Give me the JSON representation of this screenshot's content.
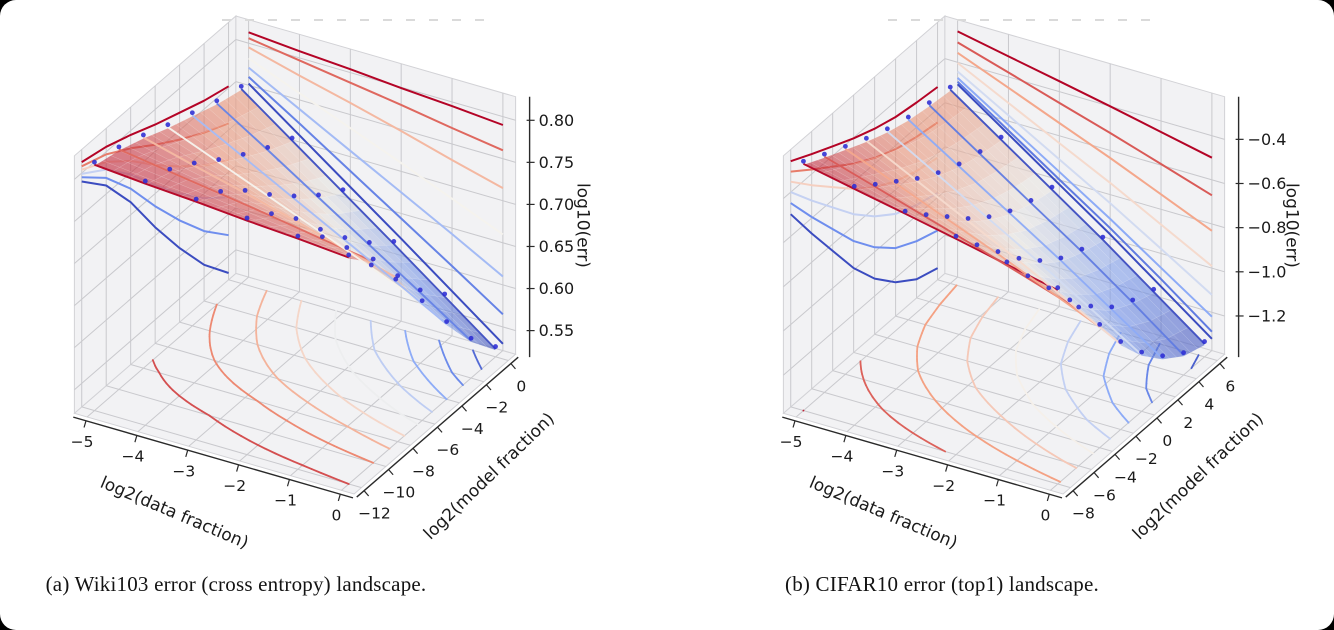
{
  "page": {
    "background": "#000000",
    "card_background": "#ffffff"
  },
  "plot_style": {
    "pane_color": "#f2f2f4",
    "grid_color": "#c9c9cd",
    "axis_color": "#2a2a2a",
    "marker_color": "#2c2cd4",
    "surface_opacity": 0.6,
    "colormap": "coolwarm",
    "colormap_anchors": [
      "#3b4cc0",
      "#7c9ff9",
      "#f5f3ee",
      "#f49a7b",
      "#b40426"
    ]
  },
  "chart_data": [
    {
      "type": "surface3d",
      "title": "(a) Wiki103 error (cross entropy) landscape.",
      "xlabel": "log2(data fraction)",
      "ylabel": "log2(model fraction)",
      "zlabel": "log10(err)",
      "x": [
        -5,
        -4,
        -3,
        -2,
        -1,
        0
      ],
      "y": [
        -12,
        -10,
        -8,
        -6,
        -4,
        -2,
        0
      ],
      "z": [
        [
          0.813,
          0.808,
          0.804,
          0.799,
          0.795,
          0.79
        ],
        [
          0.806,
          0.797,
          0.788,
          0.779,
          0.769,
          0.76
        ],
        [
          0.795,
          0.779,
          0.764,
          0.748,
          0.731,
          0.715
        ],
        [
          0.782,
          0.758,
          0.734,
          0.71,
          0.685,
          0.66
        ],
        [
          0.771,
          0.739,
          0.707,
          0.675,
          0.643,
          0.61
        ],
        [
          0.76,
          0.722,
          0.683,
          0.644,
          0.605,
          0.565
        ],
        [
          0.752,
          0.708,
          0.664,
          0.62,
          0.575,
          0.53
        ]
      ],
      "zlim": [
        0.522,
        0.828
      ],
      "xticks": [
        {
          "v": -5,
          "label": "−5"
        },
        {
          "v": -4,
          "label": "−4"
        },
        {
          "v": -3,
          "label": "−3"
        },
        {
          "v": -2,
          "label": "−2"
        },
        {
          "v": -1,
          "label": "−1"
        },
        {
          "v": 0,
          "label": "0"
        }
      ],
      "yticks": [
        {
          "v": -12,
          "label": "−12"
        },
        {
          "v": -10,
          "label": "−10"
        },
        {
          "v": -8,
          "label": "−8"
        },
        {
          "v": -6,
          "label": "−6"
        },
        {
          "v": -4,
          "label": "−4"
        },
        {
          "v": -2,
          "label": "−2"
        },
        {
          "v": 0,
          "label": "0"
        }
      ],
      "zticks": [
        {
          "v": 0.55,
          "label": "0.55"
        },
        {
          "v": 0.6,
          "label": "0.60"
        },
        {
          "v": 0.65,
          "label": "0.65"
        },
        {
          "v": 0.7,
          "label": "0.70"
        },
        {
          "v": 0.75,
          "label": "0.75"
        },
        {
          "v": 0.8,
          "label": "0.80"
        }
      ],
      "contour_levels": [
        0.55,
        0.58,
        0.61,
        0.64,
        0.67,
        0.7,
        0.73,
        0.76,
        0.79
      ],
      "grid_on": true,
      "legend": null
    },
    {
      "type": "surface3d",
      "title": "(b) CIFAR10 error (top1) landscape.",
      "xlabel": "log2(data fraction)",
      "ylabel": "log2(model fraction)",
      "zlabel": "log10(err)",
      "x": [
        -5,
        -4,
        -3,
        -2,
        -1,
        0
      ],
      "y": [
        -8,
        -6,
        -4,
        -2,
        0,
        2,
        4,
        6
      ],
      "z": [
        [
          -0.26,
          -0.307,
          -0.353,
          -0.4,
          -0.45,
          -0.5
        ],
        [
          -0.31,
          -0.38,
          -0.451,
          -0.521,
          -0.595,
          -0.67
        ],
        [
          -0.357,
          -0.449,
          -0.542,
          -0.634,
          -0.732,
          -0.831
        ],
        [
          -0.403,
          -0.518,
          -0.633,
          -0.747,
          -0.869,
          -0.991
        ],
        [
          -0.442,
          -0.574,
          -0.707,
          -0.839,
          -0.979,
          -1.121
        ],
        [
          -0.471,
          -0.617,
          -0.763,
          -0.91,
          -1.065,
          -1.22
        ],
        [
          -0.488,
          -0.643,
          -0.798,
          -0.952,
          -1.116,
          -1.288
        ],
        [
          -0.5,
          -0.66,
          -0.82,
          -0.98,
          -1.15,
          -1.32
        ]
      ],
      "zlim": [
        -1.373,
        -0.207
      ],
      "xticks": [
        {
          "v": -5,
          "label": "−5"
        },
        {
          "v": -4,
          "label": "−4"
        },
        {
          "v": -3,
          "label": "−3"
        },
        {
          "v": -2,
          "label": "−2"
        },
        {
          "v": -1,
          "label": "−1"
        },
        {
          "v": 0,
          "label": "0"
        }
      ],
      "yticks": [
        {
          "v": -8,
          "label": "−8"
        },
        {
          "v": -6,
          "label": "−6"
        },
        {
          "v": -4,
          "label": "−4"
        },
        {
          "v": -2,
          "label": "−2"
        },
        {
          "v": 0,
          "label": "0"
        },
        {
          "v": 2,
          "label": "2"
        },
        {
          "v": 4,
          "label": "4"
        },
        {
          "v": 6,
          "label": "6"
        }
      ],
      "zticks": [
        {
          "v": -1.2,
          "label": "−1.2"
        },
        {
          "v": -1.0,
          "label": "−1.0"
        },
        {
          "v": -0.8,
          "label": "−0.8"
        },
        {
          "v": -0.6,
          "label": "−0.6"
        },
        {
          "v": -0.4,
          "label": "−0.4"
        }
      ],
      "contour_levels": [
        -1.3,
        -1.17,
        -1.04,
        -0.91,
        -0.78,
        -0.65,
        -0.52,
        -0.39,
        -0.26
      ],
      "grid_on": true,
      "legend": null
    }
  ]
}
